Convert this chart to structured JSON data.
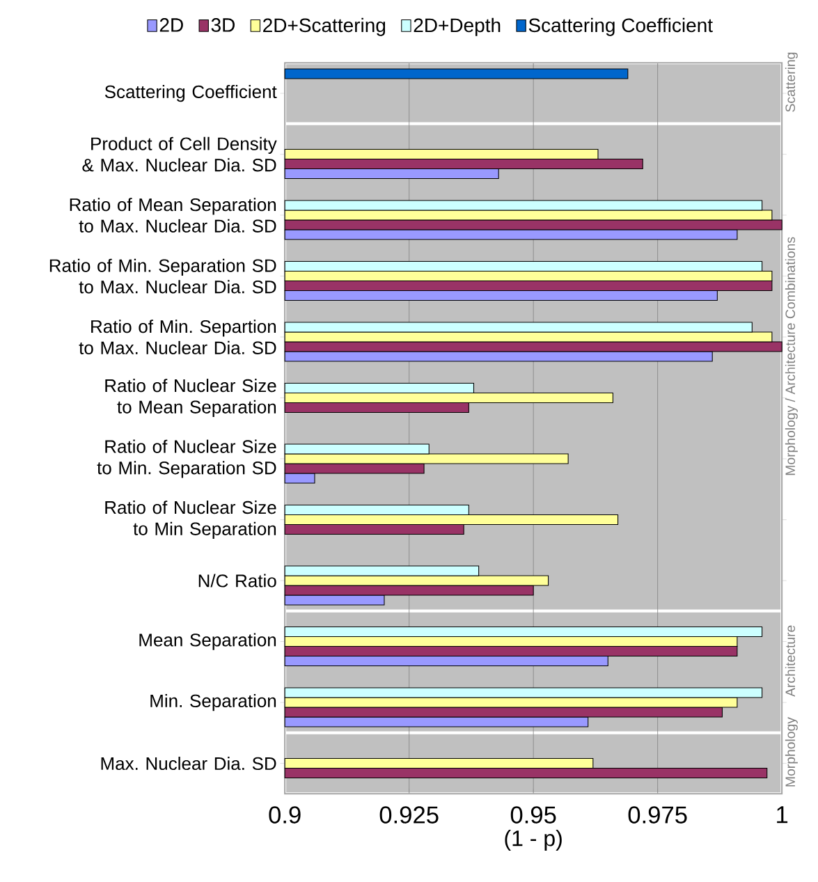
{
  "chart_data": {
    "type": "bar",
    "orientation": "horizontal",
    "xlabel": "(1 - p)",
    "categories": [
      "Scattering Coefficient",
      "Product of Cell Density & Max. Nuclear Dia. SD",
      "Ratio of Mean Separation to Max. Nuclear Dia. SD",
      "Ratio of Min. Separation SD to Max. Nuclear Dia. SD",
      "Ratio of Min. Separtion to Max. Nuclear Dia. SD",
      "Ratio of Nuclear Size to Mean Separation",
      "Ratio of Nuclear Size to Min. Separation SD",
      "Ratio of Nuclear Size to Min Separation",
      "N/C Ratio",
      "Mean Separation",
      "Min. Separation",
      "Max. Nuclear Dia. SD"
    ],
    "series": [
      {
        "name": "2D",
        "color": "#9999ff",
        "values": [
          null,
          0.943,
          0.991,
          0.987,
          0.986,
          null,
          0.906,
          null,
          0.92,
          0.965,
          0.961,
          null
        ]
      },
      {
        "name": "3D",
        "color": "#993366",
        "values": [
          null,
          0.972,
          1.0,
          0.998,
          1.0,
          0.937,
          0.928,
          0.936,
          0.95,
          0.991,
          0.988,
          0.997
        ]
      },
      {
        "name": "2D+Scattering",
        "color": "#ffff99",
        "values": [
          null,
          0.963,
          0.998,
          0.998,
          0.998,
          0.966,
          0.957,
          0.967,
          0.953,
          0.991,
          0.991,
          0.962
        ]
      },
      {
        "name": "2D+Depth",
        "color": "#ccffff",
        "values": [
          null,
          null,
          0.996,
          0.996,
          0.994,
          0.938,
          0.929,
          0.937,
          0.939,
          0.996,
          0.996,
          null
        ]
      },
      {
        "name": "Scattering Coefficient",
        "color": "#0066cc",
        "values": [
          0.969,
          null,
          null,
          null,
          null,
          null,
          null,
          null,
          null,
          null,
          null,
          null
        ]
      }
    ],
    "xlim": [
      0.9,
      1
    ],
    "xticks": [
      0.9,
      0.925,
      0.95,
      0.975,
      1
    ],
    "grid": "x",
    "legend": "top",
    "bands": [
      {
        "axis": "y",
        "from": "Scattering Coefficient",
        "to": "Scattering Coefficient",
        "label": "Scattering",
        "color": "#c0c0c0"
      },
      {
        "axis": "y",
        "from": "Product of Cell Density & Max. Nuclear Dia. SD",
        "to": "N/C Ratio",
        "label": "Morphology / Architecture Combinations",
        "color": "#c0c0c0"
      },
      {
        "axis": "y",
        "from": "Mean Separation",
        "to": "Min. Separation",
        "label": "Architecture",
        "color": "#c0c0c0"
      },
      {
        "axis": "y",
        "from": "Max. Nuclear Dia. SD",
        "to": "Max. Nuclear Dia. SD",
        "label": "Morphology",
        "color": "#c0c0c0"
      }
    ]
  }
}
